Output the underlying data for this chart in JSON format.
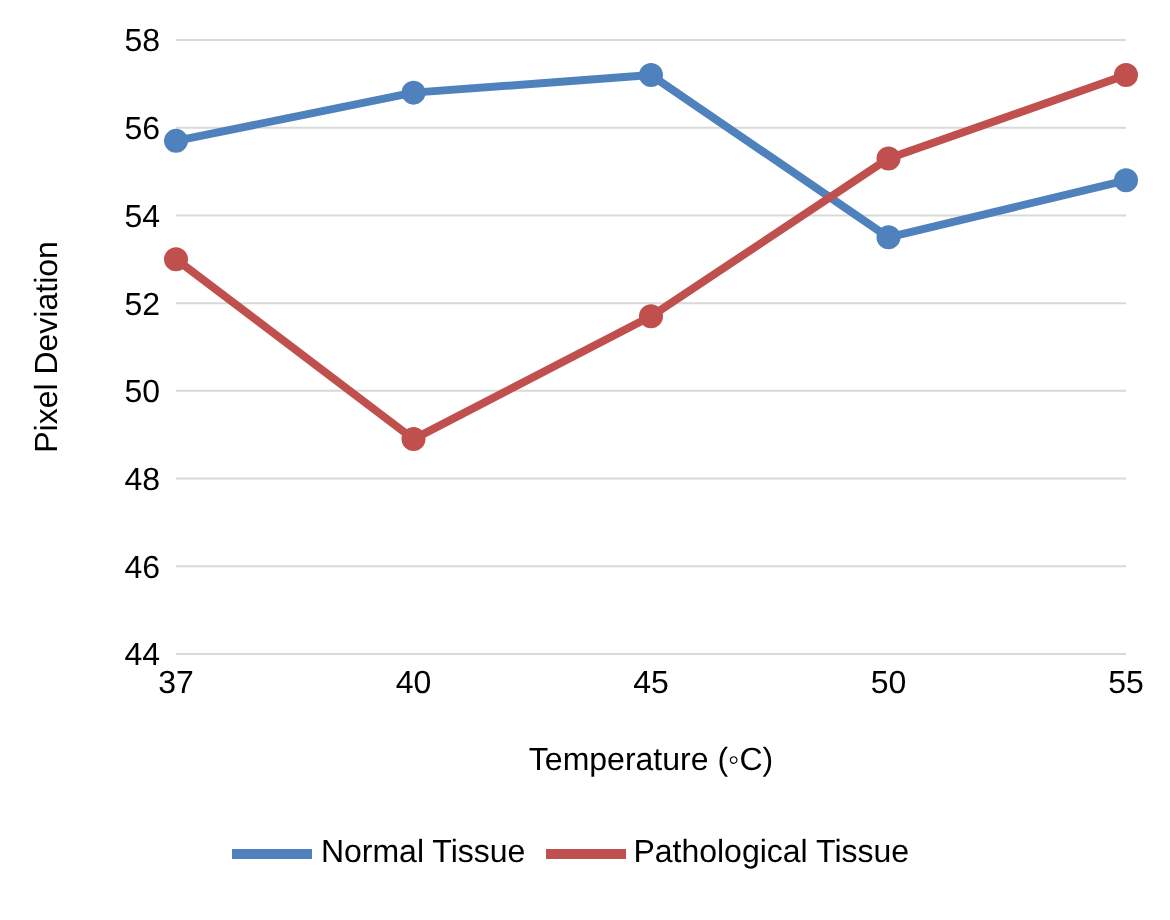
{
  "chart_data": {
    "type": "line",
    "xlabel": "Temperature (◦C)",
    "ylabel": "Pixel Deviation",
    "categories": [
      "37",
      "40",
      "45",
      "50",
      "55"
    ],
    "series": [
      {
        "name": "Normal Tissue",
        "color": "#4f81bd",
        "values": [
          55.7,
          56.8,
          57.2,
          53.5,
          54.8
        ]
      },
      {
        "name": "Pathological Tissue",
        "color": "#c0504d",
        "values": [
          53.0,
          48.9,
          51.7,
          55.3,
          57.2
        ]
      }
    ],
    "ylim": [
      44,
      58
    ],
    "yticks": [
      44,
      46,
      48,
      50,
      52,
      54,
      56,
      58
    ],
    "grid": "y",
    "legend": "bottom",
    "marker": "circle",
    "line_style": "solid"
  }
}
